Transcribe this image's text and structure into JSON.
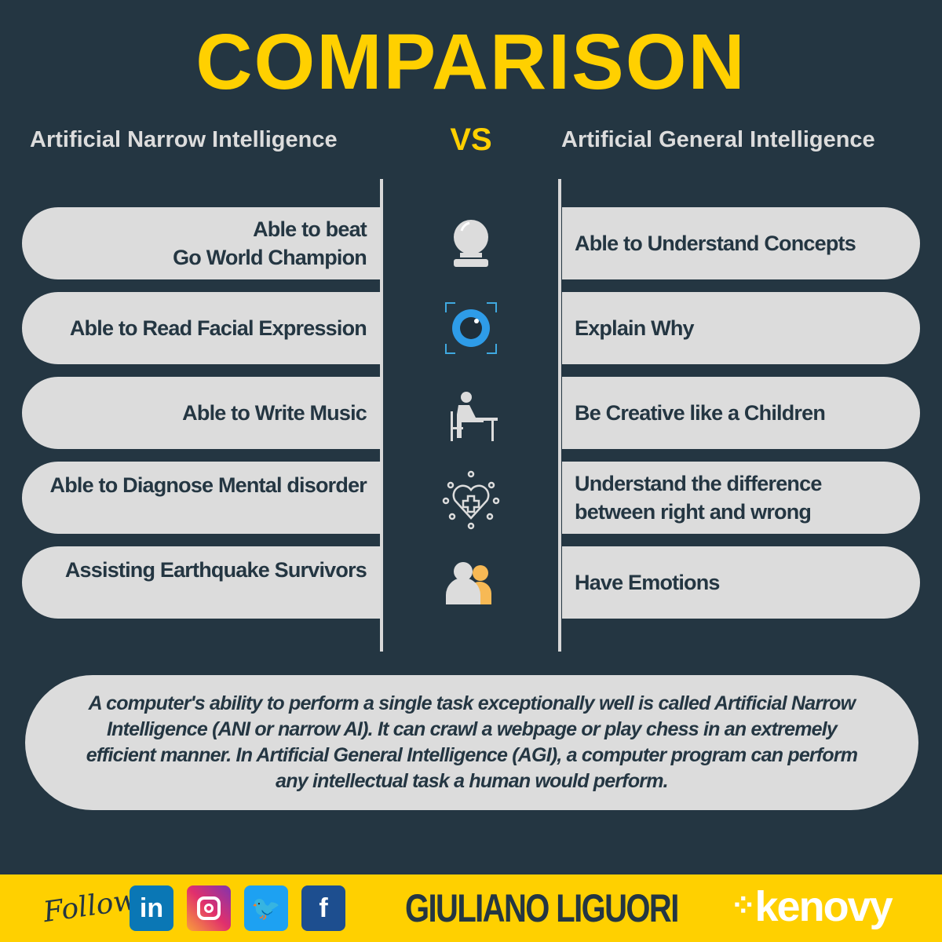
{
  "title": "COMPARISON",
  "left_header": "Artificial Narrow Intelligence",
  "vs": "VS",
  "right_header": "Artificial General Intelligence",
  "rows": [
    {
      "left_line1": "Able to beat",
      "left_line2": "Go World Champion",
      "icon": "crystal-ball-icon",
      "right": "Able to Understand Concepts"
    },
    {
      "left": "Able to Read Facial Expression",
      "icon": "eye-scan-icon",
      "right": "Explain Why"
    },
    {
      "left": "Able to Write Music",
      "icon": "person-writing-music-icon",
      "right": "Be Creative like a Children"
    },
    {
      "left": "Able to Diagnose Mental disorder",
      "icon": "heart-network-icon",
      "right_line1": "Understand the difference",
      "right_line2": "between right and wrong"
    },
    {
      "left": "Assisting Earthquake Survivors",
      "icon": "people-icon",
      "right": "Have Emotions"
    }
  ],
  "note": "A computer's ability to perform a single task exceptionally well is called Artificial Narrow Intelligence (ANI or narrow AI). It can crawl a webpage or play chess in an extremely efficient manner. In Artificial General Intelligence (AGI), a computer program can perform any intellectual task a human would perform.",
  "footer": {
    "follow": "Follow",
    "linkedin": "in",
    "facebook": "f",
    "author": "GIULIANO LIGUORI",
    "brand": "kenovy"
  },
  "colors": {
    "background": "#243642",
    "accent": "#FFD000",
    "pill": "#dcdcdc"
  }
}
